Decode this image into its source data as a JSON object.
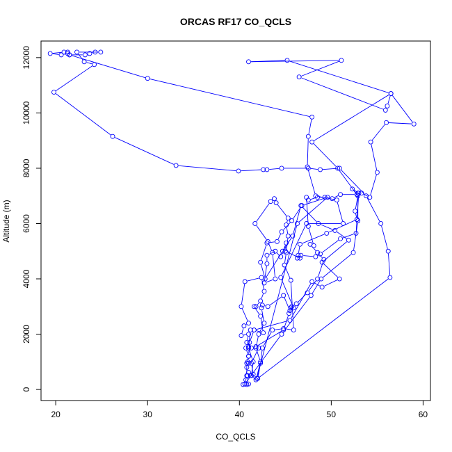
{
  "chart_data": {
    "type": "line",
    "title": "ORCAS RF17 CO_QCLS",
    "xlabel": "CO_QCLS",
    "ylabel": "Altitude (m)",
    "xlim": [
      18.4,
      60.8
    ],
    "ylim": [
      -400,
      12600
    ],
    "x_ticks": [
      20,
      30,
      40,
      50,
      60
    ],
    "y_ticks": [
      0,
      2000,
      4000,
      6000,
      8000,
      10000,
      12000
    ],
    "marker": "open-circle",
    "series_color": "#0000ff",
    "grid": false,
    "legend": "none",
    "series": [
      {
        "points": [
          [
            41.0,
            200
          ],
          [
            40.8,
            180
          ],
          [
            40.6,
            200
          ],
          [
            40.4,
            180
          ],
          [
            40.7,
            350
          ],
          [
            40.9,
            500
          ],
          [
            41.2,
            500
          ],
          [
            41.0,
            620
          ],
          [
            40.8,
            800
          ],
          [
            41.0,
            950
          ],
          [
            40.9,
            1000
          ],
          [
            41.0,
            1200
          ],
          [
            40.7,
            1500
          ],
          [
            41.0,
            1550
          ],
          [
            41.3,
            1500
          ],
          [
            40.8,
            1700
          ],
          [
            41.0,
            2000
          ],
          [
            40.2,
            1950
          ],
          [
            40.5,
            2300
          ],
          [
            41.0,
            2400
          ],
          [
            40.2,
            3000
          ],
          [
            40.6,
            3900
          ],
          [
            42.4,
            4050
          ],
          [
            42.7,
            3550
          ],
          [
            42.3,
            3200
          ],
          [
            41.8,
            3000
          ],
          [
            41.6,
            3000
          ],
          [
            42.3,
            2650
          ],
          [
            42.6,
            2050
          ],
          [
            41.6,
            2150
          ],
          [
            41.2,
            2150
          ],
          [
            41.0,
            1500
          ],
          [
            41.5,
            1000
          ],
          [
            41.3,
            500
          ],
          [
            41.8,
            350
          ],
          [
            42.3,
            1000
          ],
          [
            41.8,
            1500
          ],
          [
            42.1,
            2000
          ],
          [
            42.7,
            2400
          ],
          [
            42.4,
            2950
          ],
          [
            42.5,
            3050
          ],
          [
            43.1,
            3000
          ],
          [
            44.8,
            3400
          ],
          [
            45.5,
            2850
          ],
          [
            45.7,
            3000
          ],
          [
            46.2,
            3100
          ],
          [
            47.4,
            3500
          ],
          [
            48.5,
            4000
          ],
          [
            49.2,
            4700
          ],
          [
            48.5,
            4950
          ],
          [
            47.7,
            5250
          ],
          [
            48.1,
            5200
          ],
          [
            47.5,
            5900
          ],
          [
            47.3,
            6950
          ],
          [
            47.5,
            6850
          ],
          [
            48.5,
            6950
          ],
          [
            49.3,
            6950
          ],
          [
            50.1,
            6900
          ],
          [
            51.0,
            7050
          ],
          [
            52.8,
            7050
          ],
          [
            52.3,
            7250
          ],
          [
            53.0,
            7100
          ],
          [
            52.8,
            6150
          ],
          [
            52.7,
            5650
          ],
          [
            51.0,
            5450
          ],
          [
            48.8,
            4900
          ],
          [
            48.3,
            4800
          ],
          [
            46.7,
            4850
          ],
          [
            46.6,
            4750
          ],
          [
            45.0,
            5000
          ],
          [
            45.1,
            5300
          ],
          [
            44.5,
            4800
          ],
          [
            43.9,
            5000
          ],
          [
            43.0,
            4850
          ],
          [
            43.0,
            4550
          ],
          [
            42.7,
            3850
          ],
          [
            43.9,
            4000
          ],
          [
            43.6,
            4950
          ],
          [
            43.1,
            5350
          ],
          [
            41.7,
            6000
          ],
          [
            43.4,
            6800
          ],
          [
            43.8,
            6900
          ],
          [
            44.0,
            6750
          ],
          [
            45.3,
            6200
          ],
          [
            45.1,
            5950
          ],
          [
            45.3,
            5550
          ],
          [
            45.1,
            4950
          ],
          [
            44.9,
            4500
          ],
          [
            45.6,
            3950
          ],
          [
            45.9,
            2150
          ],
          [
            44.8,
            2200
          ],
          [
            43.6,
            2150
          ],
          [
            42.5,
            1500
          ],
          [
            42.3,
            950
          ],
          [
            42.0,
            400
          ],
          [
            56.4,
            4050
          ],
          [
            56.2,
            5000
          ],
          [
            55.4,
            6000
          ],
          [
            53.8,
            7000
          ],
          [
            50.9,
            8000
          ],
          [
            48.8,
            7950
          ],
          [
            47.5,
            8000
          ],
          [
            44.6,
            8000
          ],
          [
            43.0,
            7950
          ],
          [
            42.6,
            7950
          ],
          [
            39.9,
            7900
          ],
          [
            33.1,
            8100
          ],
          [
            26.2,
            9150
          ],
          [
            19.8,
            10750
          ],
          [
            24.2,
            11750
          ],
          [
            23.1,
            11850
          ],
          [
            22.3,
            12200
          ],
          [
            24.9,
            12200
          ],
          [
            24.3,
            12200
          ],
          [
            23.7,
            12150
          ],
          [
            23.2,
            12100
          ],
          [
            21.5,
            12100
          ],
          [
            21.3,
            12150
          ],
          [
            20.6,
            12100
          ],
          [
            19.4,
            12150
          ],
          [
            20.9,
            12200
          ],
          [
            21.3,
            12200
          ],
          [
            21.5,
            12100
          ],
          [
            30.0,
            11250
          ],
          [
            47.9,
            9850
          ],
          [
            47.5,
            9150
          ],
          [
            47.4,
            8050
          ],
          [
            48.3,
            7000
          ],
          [
            50.6,
            6850
          ],
          [
            51.3,
            6000
          ],
          [
            47.3,
            6000
          ],
          [
            44.5,
            4050
          ],
          [
            45.9,
            2950
          ],
          [
            45.6,
            2950
          ],
          [
            45.4,
            2750
          ],
          [
            44.8,
            2150
          ],
          [
            41.8,
            1550
          ],
          [
            42.1,
            1500
          ],
          [
            41.3,
            950
          ],
          [
            41.5,
            550
          ],
          [
            41.9,
            400
          ],
          [
            46.3,
            6000
          ],
          [
            49.6,
            6950
          ],
          [
            46.8,
            6650
          ],
          [
            45.7,
            6100
          ],
          [
            44.6,
            5700
          ],
          [
            44.1,
            5350
          ],
          [
            43.0,
            5300
          ],
          [
            42.3,
            4600
          ],
          [
            42.8,
            4000
          ],
          [
            44.7,
            5000
          ],
          [
            45.8,
            5550
          ],
          [
            46.7,
            6650
          ],
          [
            48.6,
            6000
          ],
          [
            50.4,
            5750
          ],
          [
            51.9,
            5400
          ],
          [
            49.0,
            4600
          ],
          [
            50.9,
            4000
          ],
          [
            49.0,
            3700
          ],
          [
            47.9,
            3900
          ],
          [
            45.5,
            2500
          ],
          [
            41.6,
            2150
          ],
          [
            41.1,
            1700
          ],
          [
            41.0,
            1200
          ],
          [
            40.8,
            950
          ],
          [
            40.8,
            500
          ],
          [
            40.6,
            200
          ],
          [
            44.6,
            2000
          ],
          [
            47.8,
            3400
          ],
          [
            48.9,
            4000
          ],
          [
            52.4,
            4950
          ],
          [
            52.9,
            6100
          ],
          [
            52.9,
            7100
          ],
          [
            53.3,
            7100
          ],
          [
            54.2,
            6950
          ],
          [
            55.0,
            7850
          ],
          [
            54.3,
            8950
          ],
          [
            56.0,
            9650
          ],
          [
            59.0,
            9600
          ],
          [
            56.5,
            10700
          ],
          [
            56.1,
            10250
          ],
          [
            55.9,
            10100
          ],
          [
            46.5,
            11300
          ],
          [
            51.1,
            11900
          ],
          [
            41.0,
            11850
          ],
          [
            45.2,
            11900
          ],
          [
            56.5,
            10700
          ],
          [
            47.9,
            8950
          ],
          [
            50.7,
            8000
          ],
          [
            52.9,
            7000
          ],
          [
            52.6,
            6450
          ],
          [
            52.8,
            6150
          ],
          [
            49.5,
            5650
          ],
          [
            46.6,
            5250
          ],
          [
            46.4,
            4850
          ],
          [
            46.3,
            4750
          ]
        ]
      }
    ]
  }
}
